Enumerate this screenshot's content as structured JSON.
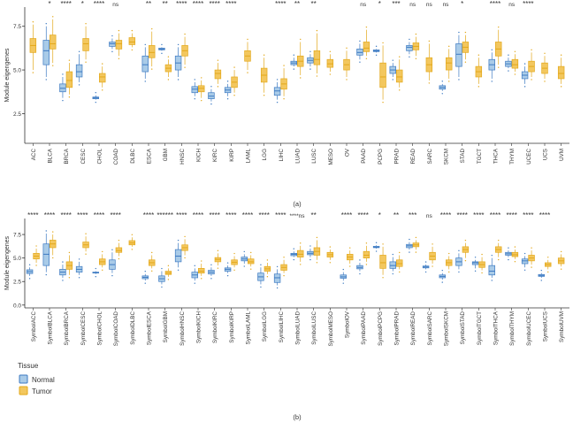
{
  "legend": {
    "title": "Tissue",
    "items": [
      {
        "label": "Normal",
        "color": "#3d7ac2",
        "fill": "#a9cbe8"
      },
      {
        "label": "Tumor",
        "color": "#e3a81b",
        "fill": "#f3c75e"
      }
    ]
  },
  "chart_data": [
    {
      "type": "boxplot",
      "panel_label": "(a)",
      "ylabel": "Module eigengenes",
      "ylim": [
        0.8,
        8.6
      ],
      "yticks": [
        2.5,
        5.0,
        7.5
      ],
      "ytick_labels": [
        "2.5",
        "5.0",
        "7.5"
      ],
      "series": [
        "Normal",
        "Tumor"
      ],
      "categories": [
        "ACC",
        "BLCA",
        "BRCA",
        "CESC",
        "CHOL",
        "COAD",
        "DLBC",
        "ESCA",
        "GBM",
        "HNSC",
        "KICH",
        "KIRC",
        "KIRP",
        "LAML",
        "LGG",
        "LIHC",
        "LUAD",
        "LUSC",
        "MESO",
        "OV",
        "PAAD",
        "PCPG",
        "PRAD",
        "READ",
        "SARC",
        "SKCM",
        "STAD",
        "TGCT",
        "THCA",
        "THYM",
        "UCEC",
        "UCS",
        "UVM"
      ],
      "significance": [
        "",
        "*",
        "****",
        "*",
        "****",
        "ns",
        "",
        "**",
        "**",
        "****",
        "****",
        "****",
        "****",
        "",
        "",
        "****",
        "**",
        "**",
        "",
        "",
        "ns",
        "*",
        "***",
        "ns",
        "ns",
        "ns",
        "*",
        "",
        "****",
        "ns",
        "****",
        "",
        ""
      ],
      "boxes": [
        {
          "n": null,
          "t": [
            5.0,
            6.0,
            6.4,
            6.8,
            7.6
          ]
        },
        {
          "n": [
            4.6,
            5.3,
            6.1,
            6.7,
            7.5
          ],
          "t": [
            5.4,
            6.2,
            6.5,
            7.0,
            7.9
          ]
        },
        {
          "n": [
            3.4,
            3.75,
            3.95,
            4.2,
            4.6
          ],
          "t": [
            3.6,
            4.0,
            4.4,
            4.9,
            5.4
          ]
        },
        {
          "n": [
            4.3,
            4.6,
            4.9,
            5.3,
            5.9
          ],
          "t": [
            5.6,
            6.1,
            6.5,
            6.8,
            7.5
          ]
        },
        {
          "n": [
            3.3,
            3.35,
            3.4,
            3.45,
            3.55
          ],
          "t": [
            4.0,
            4.3,
            4.6,
            4.8,
            5.2
          ]
        },
        {
          "n": [
            6.2,
            6.35,
            6.5,
            6.6,
            6.8
          ],
          "t": [
            5.8,
            6.2,
            6.5,
            6.7,
            7.1
          ]
        },
        {
          "n": null,
          "t": [
            6.3,
            6.45,
            6.6,
            6.85,
            7.1
          ]
        },
        {
          "n": [
            4.5,
            4.9,
            5.3,
            5.8,
            6.3
          ],
          "t": [
            5.2,
            5.7,
            6.0,
            6.4,
            7.2
          ]
        },
        {
          "n": [
            6.1,
            6.15,
            6.2,
            6.25,
            6.3
          ],
          "t": [
            4.6,
            4.9,
            5.1,
            5.3,
            5.6
          ]
        },
        {
          "n": [
            4.6,
            5.0,
            5.4,
            5.8,
            6.3
          ],
          "t": [
            5.3,
            5.8,
            6.1,
            6.4,
            6.9
          ]
        },
        {
          "n": [
            3.5,
            3.7,
            3.9,
            4.05,
            4.3
          ],
          "t": [
            3.4,
            3.75,
            3.95,
            4.1,
            4.4
          ]
        },
        {
          "n": [
            3.2,
            3.35,
            3.5,
            3.7,
            3.9
          ],
          "t": [
            4.2,
            4.5,
            4.8,
            5.0,
            5.4
          ]
        },
        {
          "n": [
            3.5,
            3.7,
            3.85,
            4.0,
            4.2
          ],
          "t": [
            3.7,
            4.0,
            4.3,
            4.6,
            5.0
          ]
        },
        {
          "n": null,
          "t": [
            5.0,
            5.5,
            5.8,
            6.1,
            6.6
          ]
        },
        {
          "n": null,
          "t": [
            3.7,
            4.3,
            4.7,
            5.1,
            5.7
          ]
        },
        {
          "n": [
            3.3,
            3.55,
            3.8,
            4.0,
            4.3
          ],
          "t": [
            3.5,
            3.9,
            4.2,
            4.5,
            5.1
          ]
        },
        {
          "n": [
            5.2,
            5.3,
            5.4,
            5.5,
            5.7
          ],
          "t": [
            4.7,
            5.2,
            5.5,
            5.8,
            6.6
          ]
        },
        {
          "n": [
            5.2,
            5.4,
            5.55,
            5.7,
            5.9
          ],
          "t": [
            4.8,
            5.3,
            5.6,
            6.1,
            7.1
          ]
        },
        {
          "n": null,
          "t": [
            4.9,
            5.15,
            5.35,
            5.6,
            5.9
          ]
        },
        {
          "n": null,
          "t": [
            4.6,
            5.0,
            5.3,
            5.6,
            6.1
          ]
        },
        {
          "n": [
            5.6,
            5.85,
            6.0,
            6.2,
            6.5
          ],
          "t": [
            5.8,
            6.05,
            6.25,
            6.6,
            7.3
          ]
        },
        {
          "n": [
            6.0,
            6.05,
            6.1,
            6.15,
            6.2
          ],
          "t": [
            3.3,
            4.0,
            4.6,
            5.4,
            6.4
          ]
        },
        {
          "n": [
            4.6,
            4.8,
            5.0,
            5.2,
            5.4
          ],
          "t": [
            4.0,
            4.3,
            4.6,
            5.0,
            5.6
          ]
        },
        {
          "n": [
            5.9,
            6.1,
            6.3,
            6.4,
            6.6
          ],
          "t": [
            5.8,
            6.15,
            6.35,
            6.55,
            6.9
          ]
        },
        {
          "n": null,
          "t": [
            4.4,
            4.9,
            5.3,
            5.7,
            6.5
          ]
        },
        {
          "n": [
            3.8,
            3.9,
            4.0,
            4.1,
            4.2
          ],
          "t": [
            4.5,
            5.0,
            5.4,
            5.7,
            6.2
          ]
        },
        {
          "n": [
            4.6,
            5.2,
            5.9,
            6.5,
            7.0
          ],
          "t": [
            5.6,
            6.0,
            6.3,
            6.6,
            7.0
          ]
        },
        {
          "n": null,
          "t": [
            4.2,
            4.6,
            4.9,
            5.2,
            5.7
          ]
        },
        {
          "n": [
            4.5,
            5.0,
            5.3,
            5.6,
            6.0
          ],
          "t": [
            5.3,
            5.8,
            6.2,
            6.6,
            7.3
          ]
        },
        {
          "n": [
            5.1,
            5.2,
            5.35,
            5.5,
            5.7
          ],
          "t": [
            4.9,
            5.1,
            5.3,
            5.6,
            5.9
          ]
        },
        {
          "n": [
            4.2,
            4.5,
            4.7,
            4.9,
            5.2
          ],
          "t": [
            4.6,
            4.9,
            5.2,
            5.5,
            6.0
          ]
        },
        {
          "n": null,
          "t": [
            4.5,
            4.8,
            5.1,
            5.4,
            5.8
          ]
        },
        {
          "n": null,
          "t": [
            4.2,
            4.5,
            4.8,
            5.2,
            5.7
          ]
        }
      ]
    },
    {
      "type": "boxplot",
      "panel_label": "(b)",
      "ylabel": "Module eigengenes",
      "ylim": [
        -0.3,
        9.2
      ],
      "yticks": [
        0.0,
        2.5,
        5.0,
        7.5
      ],
      "ytick_labels": [
        "0.0",
        "2.5",
        "5.0",
        "7.5"
      ],
      "series": [
        "Normal",
        "Tumor"
      ],
      "categories": [
        "SymbolACC",
        "SymbolBLCA",
        "SymbolBRCA",
        "SymbolCESC",
        "SymbolCHOL",
        "SymbolCOAD",
        "SymbolDLBC",
        "SymbolESCA",
        "SymbolGBM",
        "SymbolHNSC",
        "SymbolKICH",
        "SymbolKIRC",
        "SymbolKIRP",
        "SymbolLAML",
        "SymbolLGG",
        "SymbolLIHC",
        "SymbolLUAD",
        "SymbolLUSC",
        "SymbolMESO",
        "SymbolOV",
        "SymbolPAAD",
        "SymbolPCPG",
        "SymbolPRAD",
        "SymbolREAD",
        "SymbolSARC",
        "SymbolSKCM",
        "SymbolSTAD",
        "SymbolTGCT",
        "SymbolTHCA",
        "SymbolTHYM",
        "SymbolUCEC",
        "SymbolUCS",
        "SymbolUVM"
      ],
      "significance": [
        "****",
        "****",
        "****",
        "****",
        "****",
        "****",
        "",
        "****",
        "******",
        "****",
        "****",
        "****",
        "****",
        "****",
        "****",
        "****",
        "****ns",
        "**",
        "",
        "****",
        "****",
        "*",
        "**",
        "***",
        "ns",
        "****",
        "****",
        "****",
        "****",
        "****",
        "****",
        "****",
        ""
      ],
      "boxes": [
        {
          "n": [
            3.1,
            3.35,
            3.55,
            3.75,
            4.0
          ],
          "t": [
            4.5,
            4.9,
            5.2,
            5.5,
            6.0
          ]
        },
        {
          "n": [
            3.5,
            4.2,
            5.4,
            6.5,
            7.6
          ],
          "t": [
            5.3,
            6.1,
            6.5,
            6.9,
            7.5
          ]
        },
        {
          "n": [
            2.9,
            3.2,
            3.5,
            3.8,
            4.3
          ],
          "t": [
            3.2,
            3.8,
            4.2,
            4.6,
            5.3
          ]
        },
        {
          "n": [
            3.2,
            3.5,
            3.8,
            4.1,
            4.6
          ],
          "t": [
            5.7,
            6.1,
            6.4,
            6.7,
            7.3
          ]
        },
        {
          "n": [
            3.3,
            3.4,
            3.45,
            3.5,
            3.6
          ],
          "t": [
            4.0,
            4.3,
            4.6,
            4.9,
            5.4
          ]
        },
        {
          "n": [
            3.4,
            3.8,
            4.3,
            4.8,
            5.6
          ],
          "t": [
            5.2,
            5.6,
            5.8,
            6.1,
            6.6
          ]
        },
        {
          "n": null,
          "t": [
            6.2,
            6.4,
            6.6,
            6.85,
            7.2
          ]
        },
        {
          "n": [
            2.6,
            2.8,
            2.95,
            3.1,
            3.3
          ],
          "t": [
            3.9,
            4.2,
            4.5,
            4.8,
            5.3
          ]
        },
        {
          "n": [
            2.2,
            2.5,
            2.8,
            3.1,
            3.6
          ],
          "t": [
            3.0,
            3.25,
            3.4,
            3.6,
            3.9
          ]
        },
        {
          "n": [
            4.0,
            4.6,
            5.2,
            5.9,
            6.6
          ],
          "t": [
            5.3,
            5.8,
            6.1,
            6.4,
            7.0
          ]
        },
        {
          "n": [
            2.6,
            2.9,
            3.2,
            3.5,
            3.9
          ],
          "t": [
            3.1,
            3.4,
            3.6,
            3.9,
            4.4
          ]
        },
        {
          "n": [
            3.1,
            3.3,
            3.5,
            3.7,
            4.0
          ],
          "t": [
            4.2,
            4.6,
            4.85,
            5.05,
            5.5
          ]
        },
        {
          "n": [
            3.4,
            3.6,
            3.8,
            3.95,
            4.2
          ],
          "t": [
            4.0,
            4.3,
            4.55,
            4.8,
            5.2
          ]
        },
        {
          "n": [
            4.4,
            4.7,
            4.9,
            5.1,
            5.4
          ],
          "t": [
            4.1,
            4.4,
            4.6,
            4.9,
            5.3
          ]
        },
        {
          "n": [
            2.2,
            2.6,
            3.0,
            3.4,
            4.0
          ],
          "t": [
            3.3,
            3.6,
            3.85,
            4.1,
            4.5
          ]
        },
        {
          "n": [
            2.1,
            2.4,
            2.9,
            3.3,
            3.8
          ],
          "t": [
            3.4,
            3.7,
            4.0,
            4.3,
            4.8
          ]
        },
        {
          "n": [
            5.1,
            5.25,
            5.4,
            5.5,
            5.7
          ],
          "t": [
            4.6,
            5.1,
            5.4,
            5.8,
            6.3
          ]
        },
        {
          "n": [
            5.1,
            5.35,
            5.5,
            5.7,
            6.0
          ],
          "t": [
            4.8,
            5.3,
            5.7,
            6.1,
            6.9
          ]
        },
        {
          "n": null,
          "t": [
            4.8,
            5.1,
            5.35,
            5.6,
            5.9
          ]
        },
        {
          "n": [
            2.6,
            2.85,
            3.0,
            3.2,
            3.5
          ],
          "t": [
            4.4,
            4.8,
            5.1,
            5.4,
            5.8
          ]
        },
        {
          "n": [
            3.6,
            3.85,
            4.0,
            4.2,
            4.5
          ],
          "t": [
            4.6,
            5.0,
            5.3,
            5.7,
            6.3
          ]
        },
        {
          "n": [
            6.0,
            6.1,
            6.15,
            6.25,
            6.35
          ],
          "t": [
            3.2,
            3.9,
            4.5,
            5.3,
            6.2
          ]
        },
        {
          "n": [
            3.6,
            3.9,
            4.2,
            4.6,
            5.1
          ],
          "t": [
            3.8,
            4.1,
            4.4,
            4.8,
            5.3
          ]
        },
        {
          "n": [
            5.9,
            6.1,
            6.3,
            6.45,
            6.7
          ],
          "t": [
            5.9,
            6.2,
            6.4,
            6.6,
            6.9
          ]
        },
        {
          "n": [
            3.8,
            3.95,
            4.05,
            4.15,
            4.3
          ],
          "t": [
            4.4,
            4.8,
            5.2,
            5.6,
            6.2
          ]
        },
        {
          "n": [
            2.7,
            2.9,
            3.05,
            3.2,
            3.4
          ],
          "t": [
            3.8,
            4.2,
            4.5,
            4.8,
            5.2
          ]
        },
        {
          "n": [
            3.8,
            4.2,
            4.6,
            5.0,
            5.5
          ],
          "t": [
            5.0,
            5.6,
            5.9,
            6.2,
            6.6
          ]
        },
        {
          "n": [
            3.9,
            4.3,
            4.5,
            4.6,
            4.8
          ],
          "t": [
            3.7,
            4.0,
            4.3,
            4.6,
            5.1
          ]
        },
        {
          "n": [
            2.9,
            3.2,
            3.6,
            4.2,
            5.0
          ],
          "t": [
            5.1,
            5.6,
            5.9,
            6.2,
            6.6
          ]
        },
        {
          "n": [
            5.1,
            5.3,
            5.45,
            5.6,
            5.8
          ],
          "t": [
            4.9,
            5.15,
            5.35,
            5.6,
            5.9
          ]
        },
        {
          "n": [
            4.0,
            4.4,
            4.7,
            4.9,
            5.2
          ],
          "t": [
            4.3,
            4.7,
            5.0,
            5.3,
            5.8
          ]
        },
        {
          "n": [
            2.9,
            3.05,
            3.15,
            3.25,
            3.4
          ],
          "t": [
            3.8,
            4.1,
            4.3,
            4.5,
            4.8
          ]
        },
        {
          "n": null,
          "t": [
            4.1,
            4.4,
            4.7,
            5.0,
            5.4
          ]
        }
      ]
    }
  ]
}
